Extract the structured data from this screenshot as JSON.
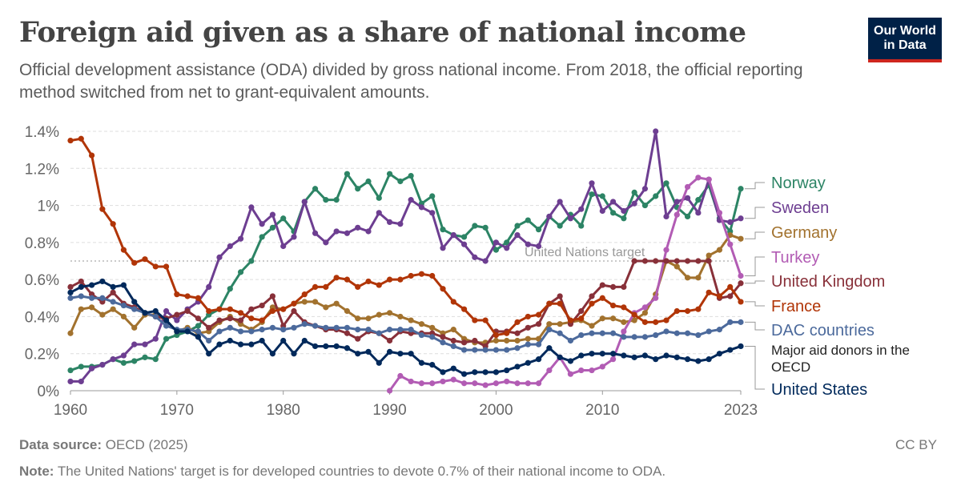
{
  "header": {
    "title": "Foreign aid given as a share of national income",
    "subtitle": "Official development assistance (ODA) divided by gross national income. From 2018, the official reporting method switched from net to grant-equivalent amounts.",
    "logo_line1": "Our World",
    "logo_line2": "in Data"
  },
  "footer": {
    "source_label": "Data source:",
    "source_text": "OECD (2025)",
    "license": "CC BY",
    "note_label": "Note:",
    "note_text": "The United Nations' target is for developed countries to devote 0.7% of their national income to ODA."
  },
  "chart_data": {
    "type": "line",
    "xlim": [
      1960,
      2023
    ],
    "ylim": [
      0,
      1.4
    ],
    "x_ticks": [
      1960,
      1970,
      1980,
      1990,
      2000,
      2010,
      2023
    ],
    "y_ticks": [
      0,
      0.2,
      0.4,
      0.6,
      0.8,
      1.0,
      1.2,
      1.4
    ],
    "y_tick_labels": [
      "0%",
      "0.2%",
      "0.4%",
      "0.6%",
      "0.8%",
      "1%",
      "1.2%",
      "1.4%"
    ],
    "reference_line": {
      "value": 0.7,
      "label": "United Nations target"
    },
    "grid": "horizontal dashed",
    "legend": "right, labels at line ends",
    "series": [
      {
        "name": "Norway",
        "color": "#2c8465",
        "label_y": 1.1,
        "start": 1960,
        "values": [
          0.11,
          0.13,
          0.13,
          0.14,
          0.17,
          0.15,
          0.16,
          0.18,
          0.17,
          0.28,
          0.3,
          0.32,
          0.35,
          0.41,
          0.44,
          0.55,
          0.64,
          0.7,
          0.83,
          0.88,
          0.93,
          0.86,
          1.02,
          1.09,
          1.03,
          1.03,
          1.17,
          1.09,
          1.13,
          1.04,
          1.17,
          1.13,
          1.16,
          1.01,
          1.05,
          0.87,
          0.84,
          0.83,
          0.89,
          0.88,
          0.76,
          0.8,
          0.89,
          0.92,
          0.87,
          0.94,
          0.89,
          0.95,
          0.89,
          1.06,
          1.05,
          0.96,
          0.93,
          1.07,
          1.0,
          1.05,
          1.12,
          0.99,
          0.94,
          1.03,
          1.11,
          0.93,
          0.86,
          1.09
        ]
      },
      {
        "name": "Sweden",
        "color": "#6d3e91",
        "label_y": 0.98,
        "start": 1960,
        "values": [
          0.05,
          0.05,
          0.12,
          0.14,
          0.17,
          0.19,
          0.25,
          0.25,
          0.28,
          0.43,
          0.38,
          0.44,
          0.48,
          0.56,
          0.72,
          0.78,
          0.82,
          0.99,
          0.9,
          0.95,
          0.78,
          0.83,
          1.02,
          0.85,
          0.8,
          0.86,
          0.85,
          0.88,
          0.86,
          0.96,
          0.91,
          0.9,
          1.03,
          0.99,
          0.96,
          0.77,
          0.84,
          0.79,
          0.72,
          0.7,
          0.8,
          0.77,
          0.84,
          0.79,
          0.78,
          0.94,
          1.02,
          0.93,
          0.98,
          1.12,
          0.97,
          1.02,
          0.97,
          1.01,
          1.09,
          1.4,
          0.94,
          1.02,
          1.04,
          0.96,
          1.14,
          0.92,
          0.91,
          0.93
        ]
      },
      {
        "name": "Germany",
        "color": "#a2722e",
        "label_y": 0.85,
        "start": 1960,
        "values": [
          0.31,
          0.44,
          0.45,
          0.41,
          0.44,
          0.4,
          0.34,
          0.41,
          0.41,
          0.38,
          0.32,
          0.34,
          0.31,
          0.32,
          0.37,
          0.4,
          0.36,
          0.33,
          0.37,
          0.45,
          0.44,
          0.47,
          0.48,
          0.48,
          0.45,
          0.47,
          0.43,
          0.39,
          0.39,
          0.41,
          0.42,
          0.4,
          0.38,
          0.36,
          0.34,
          0.31,
          0.33,
          0.28,
          0.26,
          0.26,
          0.27,
          0.27,
          0.27,
          0.28,
          0.28,
          0.36,
          0.36,
          0.37,
          0.38,
          0.35,
          0.39,
          0.39,
          0.37,
          0.38,
          0.42,
          0.52,
          0.7,
          0.67,
          0.61,
          0.61,
          0.73,
          0.76,
          0.84,
          0.82
        ]
      },
      {
        "name": "Turkey",
        "color": "#b25cb4",
        "label_y": 0.72,
        "start": 1990,
        "values": [
          0.0,
          0.08,
          0.05,
          0.04,
          0.04,
          0.05,
          0.06,
          0.04,
          0.04,
          0.03,
          0.04,
          0.05,
          0.04,
          0.04,
          0.04,
          0.11,
          0.18,
          0.09,
          0.11,
          0.11,
          0.13,
          0.17,
          0.32,
          0.42,
          0.45,
          0.5,
          0.76,
          0.95,
          1.1,
          1.15,
          1.14,
          0.96,
          0.79,
          0.62
        ]
      },
      {
        "name": "United Kingdom",
        "color": "#883039",
        "label_y": 0.59,
        "start": 1960,
        "values": [
          0.56,
          0.59,
          0.52,
          0.48,
          0.53,
          0.47,
          0.45,
          0.42,
          0.4,
          0.39,
          0.41,
          0.43,
          0.39,
          0.34,
          0.38,
          0.39,
          0.38,
          0.44,
          0.46,
          0.51,
          0.35,
          0.43,
          0.37,
          0.35,
          0.33,
          0.33,
          0.31,
          0.28,
          0.32,
          0.31,
          0.27,
          0.32,
          0.31,
          0.31,
          0.31,
          0.29,
          0.27,
          0.26,
          0.27,
          0.24,
          0.32,
          0.32,
          0.31,
          0.34,
          0.36,
          0.47,
          0.51,
          0.36,
          0.43,
          0.51,
          0.57,
          0.56,
          0.56,
          0.7,
          0.7,
          0.7,
          0.7,
          0.7,
          0.7,
          0.7,
          0.7,
          0.5,
          0.51,
          0.58
        ]
      },
      {
        "name": "France",
        "color": "#b13507",
        "label_y": 0.46,
        "start": 1960,
        "values": [
          1.35,
          1.36,
          1.27,
          0.98,
          0.9,
          0.76,
          0.69,
          0.71,
          0.67,
          0.67,
          0.52,
          0.51,
          0.5,
          0.43,
          0.44,
          0.44,
          0.42,
          0.39,
          0.38,
          0.43,
          0.44,
          0.47,
          0.52,
          0.56,
          0.56,
          0.61,
          0.6,
          0.56,
          0.59,
          0.57,
          0.6,
          0.6,
          0.62,
          0.63,
          0.62,
          0.55,
          0.48,
          0.44,
          0.38,
          0.38,
          0.3,
          0.31,
          0.37,
          0.4,
          0.41,
          0.47,
          0.47,
          0.38,
          0.39,
          0.47,
          0.5,
          0.46,
          0.45,
          0.41,
          0.37,
          0.37,
          0.38,
          0.43,
          0.43,
          0.44,
          0.53,
          0.51,
          0.56,
          0.48
        ]
      },
      {
        "name": "DAC countries",
        "color": "#4c6a9c",
        "label_y": 0.33,
        "start": 1960,
        "values": [
          0.5,
          0.51,
          0.5,
          0.5,
          0.48,
          0.46,
          0.44,
          0.42,
          0.4,
          0.35,
          0.33,
          0.33,
          0.32,
          0.27,
          0.32,
          0.34,
          0.32,
          0.32,
          0.33,
          0.34,
          0.33,
          0.34,
          0.36,
          0.35,
          0.34,
          0.34,
          0.34,
          0.33,
          0.33,
          0.31,
          0.33,
          0.33,
          0.33,
          0.3,
          0.29,
          0.26,
          0.24,
          0.22,
          0.22,
          0.22,
          0.22,
          0.22,
          0.23,
          0.25,
          0.25,
          0.33,
          0.31,
          0.27,
          0.3,
          0.31,
          0.31,
          0.31,
          0.29,
          0.29,
          0.29,
          0.3,
          0.32,
          0.31,
          0.31,
          0.3,
          0.32,
          0.33,
          0.37,
          0.37
        ]
      },
      {
        "name": "United States",
        "color": "#00295b",
        "label_y": 0.0,
        "start": 1960,
        "values": [
          0.53,
          0.56,
          0.57,
          0.59,
          0.56,
          0.57,
          0.48,
          0.42,
          0.43,
          0.38,
          0.32,
          0.32,
          0.29,
          0.2,
          0.25,
          0.27,
          0.25,
          0.25,
          0.27,
          0.2,
          0.27,
          0.2,
          0.27,
          0.24,
          0.24,
          0.24,
          0.23,
          0.2,
          0.21,
          0.15,
          0.21,
          0.2,
          0.2,
          0.15,
          0.14,
          0.1,
          0.12,
          0.09,
          0.1,
          0.1,
          0.1,
          0.11,
          0.13,
          0.15,
          0.17,
          0.23,
          0.18,
          0.16,
          0.19,
          0.2,
          0.2,
          0.2,
          0.19,
          0.18,
          0.19,
          0.17,
          0.19,
          0.18,
          0.17,
          0.16,
          0.17,
          0.2,
          0.22,
          0.24
        ]
      }
    ],
    "annotation": {
      "text_line1": "Major aid donors in the",
      "text_line2": "OECD"
    }
  }
}
